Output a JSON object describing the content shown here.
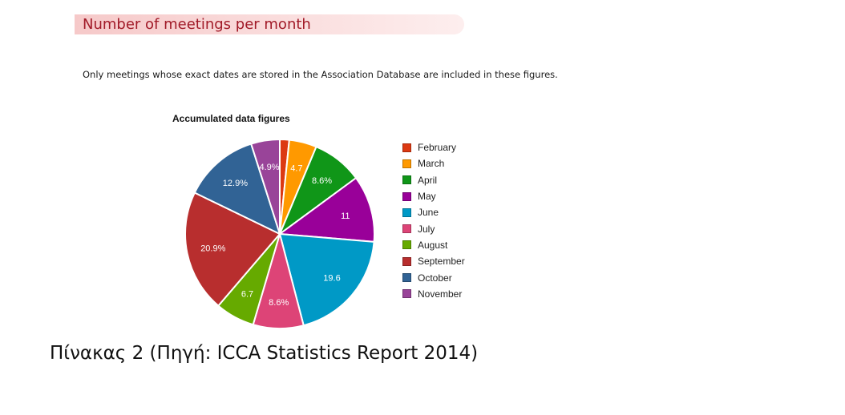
{
  "header": {
    "title": "Number of meetings per month"
  },
  "note": "Only meetings whose exact dates are stored in the Association Database are included in these figures.",
  "caption": "Πίνακας 2 (Πηγή: ICCA Statistics Report 2014)",
  "chart_data": {
    "type": "pie",
    "title": "Accumulated data figures",
    "legend_position": "right",
    "slices": [
      {
        "label": "February",
        "value": 1.6,
        "display": "",
        "color": "#dc3912"
      },
      {
        "label": "March",
        "value": 4.7,
        "display": "4.7",
        "color": "#ff9900"
      },
      {
        "label": "April",
        "value": 8.6,
        "display": "8.6%",
        "color": "#109618"
      },
      {
        "label": "May",
        "value": 11.4,
        "display": "11",
        "color": "#990099"
      },
      {
        "label": "June",
        "value": 19.6,
        "display": "19.6",
        "color": "#0099c6"
      },
      {
        "label": "July",
        "value": 8.6,
        "display": "8.6%",
        "color": "#dd4477"
      },
      {
        "label": "August",
        "value": 6.7,
        "display": "6.7",
        "color": "#66aa00"
      },
      {
        "label": "September",
        "value": 20.9,
        "display": "20.9%",
        "color": "#b82e2e"
      },
      {
        "label": "October",
        "value": 12.9,
        "display": "12.9%",
        "color": "#316395"
      },
      {
        "label": "November",
        "value": 4.9,
        "display": "4.9%",
        "color": "#994499"
      }
    ]
  }
}
